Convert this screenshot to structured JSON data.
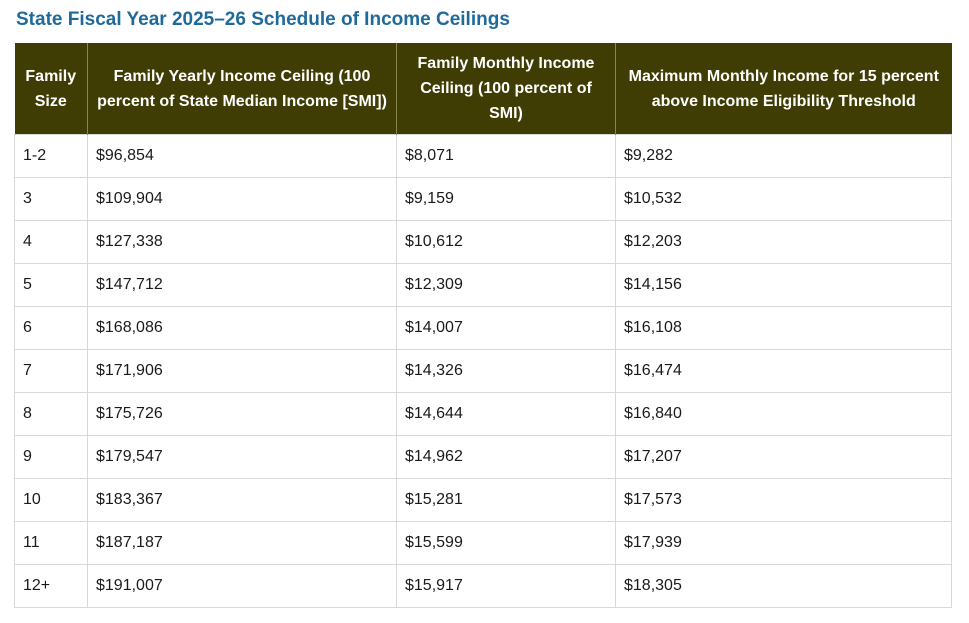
{
  "page": {
    "title": "State Fiscal Year 2025–26 Schedule of Income Ceilings"
  },
  "table": {
    "headers": [
      "Family Size",
      "Family Yearly Income Ceiling (100 percent of State Median Income [SMI])",
      "Family Monthly Income Ceiling (100 percent of SMI)",
      "Maximum Monthly Income for 15 percent above Income Eligibility Threshold"
    ],
    "rows": [
      [
        "1-2",
        "$96,854",
        "$8,071",
        "$9,282"
      ],
      [
        "3",
        "$109,904",
        "$9,159",
        "$10,532"
      ],
      [
        "4",
        "$127,338",
        "$10,612",
        "$12,203"
      ],
      [
        "5",
        "$147,712",
        "$12,309",
        "$14,156"
      ],
      [
        "6",
        "$168,086",
        "$14,007",
        "$16,108"
      ],
      [
        "7",
        "$171,906",
        "$14,326",
        "$16,474"
      ],
      [
        "8",
        "$175,726",
        "$14,644",
        "$16,840"
      ],
      [
        "9",
        "$179,547",
        "$14,962",
        "$17,207"
      ],
      [
        "10",
        "$183,367",
        "$15,281",
        "$17,573"
      ],
      [
        "11",
        "$187,187",
        "$15,599",
        "$17,939"
      ],
      [
        "12+",
        "$191,007",
        "$15,917",
        "$18,305"
      ]
    ]
  },
  "colors": {
    "title": "#1f6a9a",
    "header_background": "#3f3c04",
    "header_text": "#ffffff",
    "cell_border": "#d9d9d9"
  }
}
